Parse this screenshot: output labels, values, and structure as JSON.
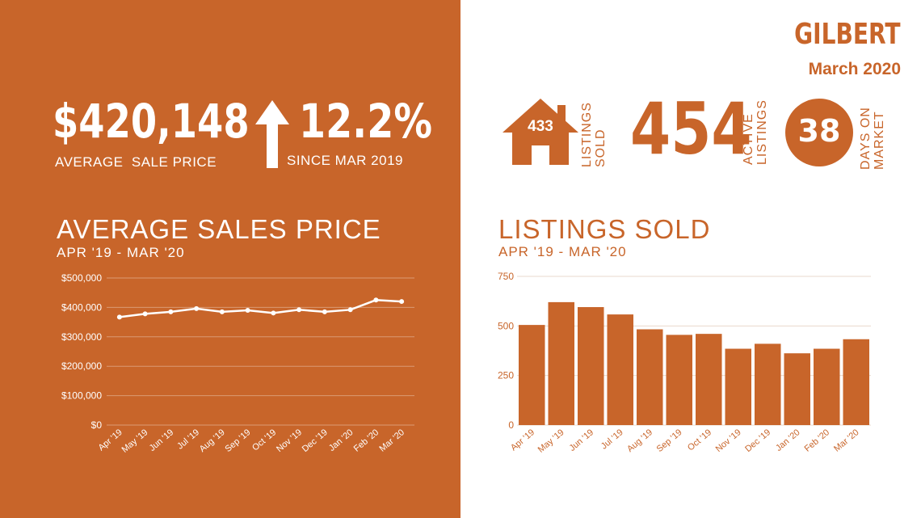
{
  "header": {
    "city": "GILBERT",
    "month": "March 2020"
  },
  "left_stats": {
    "avg_price": "$420,148",
    "avg_price_label": "AVERAGE  SALE PRICE",
    "change": "12.2%",
    "change_label": "SINCE MAR 2019"
  },
  "right_stats": {
    "listings_sold": "433",
    "listings_sold_label": "LISTINGS SOLD",
    "active": "454",
    "active_label": "ACTIVE LISTINGS",
    "days": "38",
    "days_label": "DAYS ON MARKET"
  },
  "colors": {
    "accent": "#c8652a",
    "white": "#ffffff"
  },
  "chart_data": [
    {
      "type": "line",
      "title": "AVERAGE SALES PRICE",
      "subtitle": "APR '19 - MAR '20",
      "categories": [
        "Apr '19",
        "May '19",
        "Jun '19",
        "Jul '19",
        "Aug '19",
        "Sep '19",
        "Oct '19",
        "Nov '19",
        "Dec '19",
        "Jan '20",
        "Feb '20",
        "Mar '20"
      ],
      "values": [
        367000,
        378000,
        385000,
        396000,
        385000,
        390000,
        381000,
        392000,
        385000,
        392000,
        425000,
        420148
      ],
      "ylim": [
        0,
        500000
      ],
      "yticks": [
        0,
        100000,
        200000,
        300000,
        400000,
        500000
      ],
      "ytick_labels": [
        "$0",
        "$100,000",
        "$200,000",
        "$300,000",
        "$400,000",
        "$500,000"
      ],
      "grid": true
    },
    {
      "type": "bar",
      "title": "LISTINGS SOLD",
      "subtitle": "APR '19 - MAR '20",
      "categories": [
        "Apr '19",
        "May '19",
        "Jun '19",
        "Jul '19",
        "Aug '19",
        "Sep '19",
        "Oct '19",
        "Nov '19",
        "Dec '19",
        "Jan '20",
        "Feb '20",
        "Mar '20"
      ],
      "values": [
        505,
        620,
        595,
        558,
        483,
        455,
        460,
        385,
        410,
        362,
        385,
        433
      ],
      "ylim": [
        0,
        750
      ],
      "yticks": [
        0,
        250,
        500,
        750
      ],
      "ytick_labels": [
        "0",
        "250",
        "500",
        "750"
      ],
      "grid": true
    }
  ]
}
